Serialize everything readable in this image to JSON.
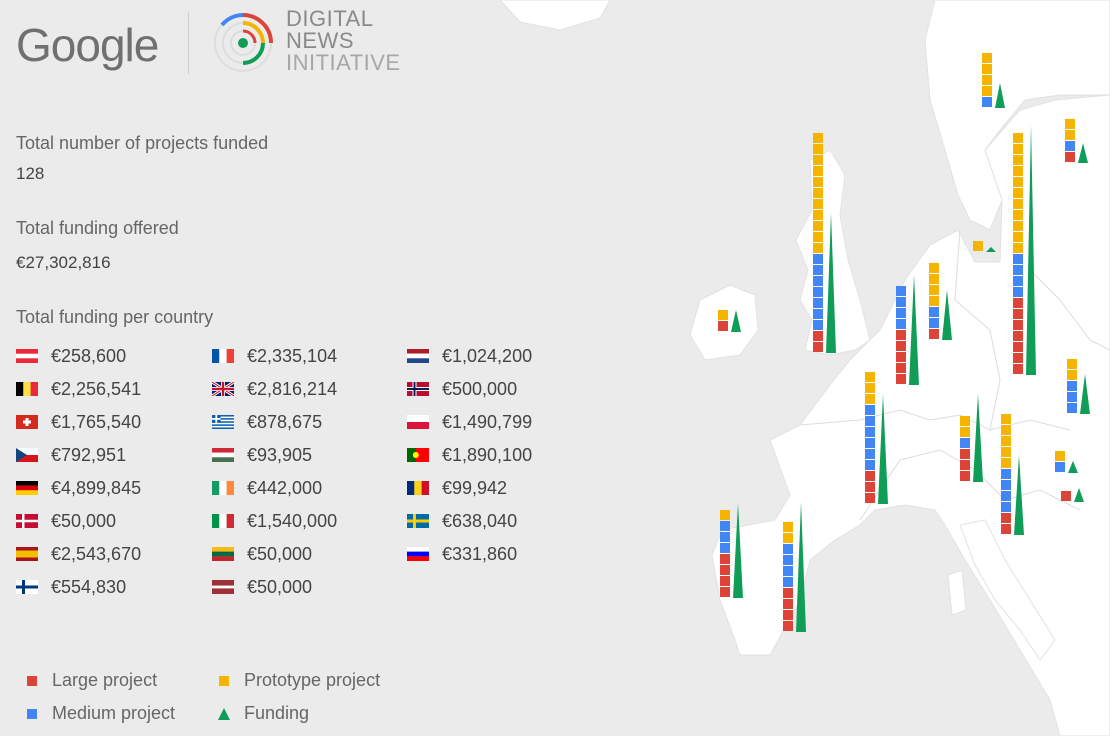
{
  "header": {
    "google_label": "Google",
    "dni_line1": "DIGITAL",
    "dni_line2": "NEWS",
    "dni_line3": "INITIATIVE"
  },
  "stats": {
    "projects_label": "Total number of projects funded",
    "projects_value": "128",
    "funding_label": "Total funding offered",
    "funding_value": "€27,302,816",
    "per_country_label": "Total funding per country"
  },
  "countries": [
    {
      "flag": "austria",
      "amount": "€258,600"
    },
    {
      "flag": "belgium",
      "amount": "€2,256,541"
    },
    {
      "flag": "switzerland",
      "amount": "€1,765,540"
    },
    {
      "flag": "czech-republic",
      "amount": "€792,951"
    },
    {
      "flag": "germany",
      "amount": "€4,899,845"
    },
    {
      "flag": "denmark",
      "amount": "€50,000"
    },
    {
      "flag": "spain",
      "amount": "€2,543,670"
    },
    {
      "flag": "finland",
      "amount": "€554,830"
    },
    {
      "flag": "france",
      "amount": "€2,335,104"
    },
    {
      "flag": "united-kingdom",
      "amount": "€2,816,214"
    },
    {
      "flag": "greece",
      "amount": "€878,675"
    },
    {
      "flag": "hungary",
      "amount": "€93,905"
    },
    {
      "flag": "ireland",
      "amount": "€442,000"
    },
    {
      "flag": "italy",
      "amount": "€1,540,000"
    },
    {
      "flag": "lithuania",
      "amount": "€50,000"
    },
    {
      "flag": "latvia",
      "amount": "€50,000"
    },
    {
      "flag": "netherlands",
      "amount": "€1,024,200"
    },
    {
      "flag": "norway",
      "amount": "€500,000"
    },
    {
      "flag": "poland",
      "amount": "€1,490,799"
    },
    {
      "flag": "portugal",
      "amount": "€1,890,100"
    },
    {
      "flag": "romania",
      "amount": "€99,942"
    },
    {
      "flag": "sweden",
      "amount": "€638,040"
    },
    {
      "flag": "slovenia",
      "amount": "€331,860"
    }
  ],
  "legend": {
    "large": "Large project",
    "medium": "Medium project",
    "prototype": "Prototype project",
    "funding": "Funding"
  },
  "colors": {
    "large": "#db4437",
    "medium": "#4285f4",
    "prototype": "#f4b400",
    "funding": "#0f9d58",
    "land": "#ffffff",
    "sea": "#ebebeb"
  }
}
